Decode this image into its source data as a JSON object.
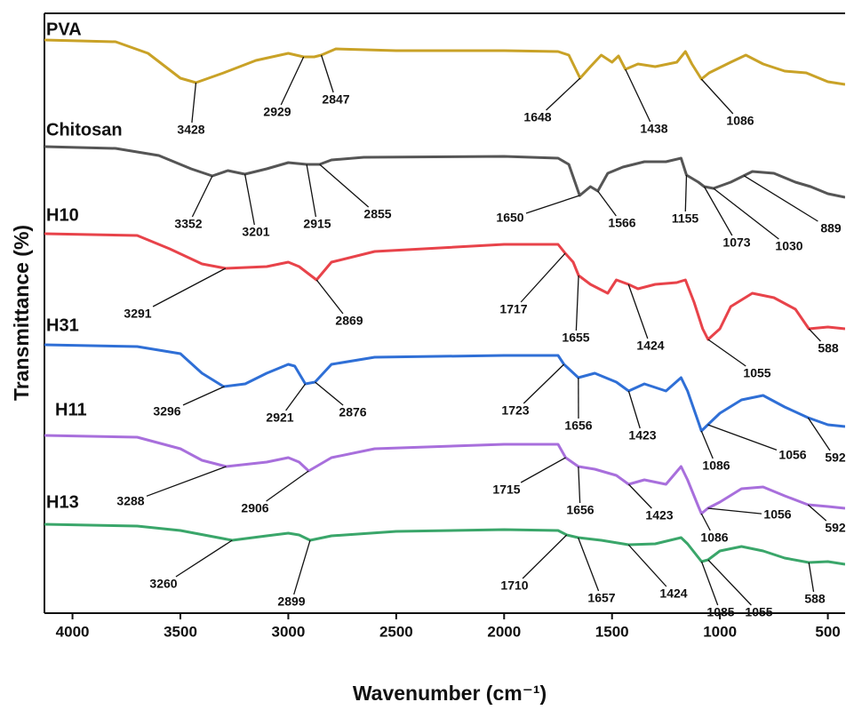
{
  "chart_data": {
    "type": "line",
    "xlabel": "Wavenumber (cm⁻¹)",
    "ylabel": "Transmittance (%)",
    "xlim": [
      4130,
      420
    ],
    "xticks": [
      4000,
      3500,
      3000,
      2500,
      2000,
      1500,
      1000,
      500
    ],
    "ylim": [
      0,
      135
    ],
    "series": [
      {
        "name": "PVA",
        "color": "#c9a227",
        "x": [
          4130,
          3800,
          3650,
          3500,
          3428,
          3300,
          3150,
          3000,
          2929,
          2880,
          2847,
          2780,
          2500,
          2000,
          1750,
          1700,
          1648,
          1600,
          1550,
          1500,
          1470,
          1438,
          1380,
          1300,
          1200,
          1160,
          1130,
          1086,
          1050,
          950,
          880,
          800,
          700,
          600,
          500,
          420
        ],
        "values": [
          129,
          128.6,
          126,
          120.4,
          119.4,
          121.6,
          124.4,
          126,
          125.2,
          125.2,
          125.6,
          127,
          126.6,
          126.6,
          126.4,
          125.6,
          120.4,
          123,
          125.6,
          124,
          125.4,
          122.4,
          123.6,
          123,
          124,
          126.4,
          123.6,
          120.2,
          121.6,
          124,
          125.6,
          123.6,
          122,
          121.6,
          119.6,
          119
        ],
        "peaks": [
          3428,
          2929,
          2847,
          1648,
          1438,
          1086
        ]
      },
      {
        "name": "Chitosan",
        "color": "#555555",
        "x": [
          4130,
          3800,
          3600,
          3450,
          3352,
          3280,
          3201,
          3100,
          3000,
          2915,
          2855,
          2800,
          2650,
          2000,
          1750,
          1700,
          1650,
          1600,
          1566,
          1520,
          1450,
          1350,
          1250,
          1180,
          1155,
          1100,
          1073,
          1030,
          950,
          850,
          750,
          650,
          580,
          500,
          420
        ],
        "values": [
          105,
          104.6,
          103,
          100,
          98.4,
          99.6,
          98.8,
          100,
          101.4,
          101,
          101,
          102,
          102.6,
          102.8,
          102.4,
          101,
          94,
          96,
          95,
          99,
          100.4,
          101.6,
          101.6,
          102.4,
          98.6,
          97,
          96,
          95.6,
          97,
          99.4,
          99,
          97,
          96,
          94.4,
          93.6
        ],
        "peaks": [
          3352,
          3201,
          2915,
          2855,
          1650,
          1566,
          1155,
          1073,
          1030,
          889
        ]
      },
      {
        "name": "H10",
        "color": "#e8434a",
        "x": [
          4130,
          3700,
          3550,
          3400,
          3291,
          3100,
          3000,
          2950,
          2869,
          2800,
          2600,
          2000,
          1750,
          1717,
          1680,
          1655,
          1600,
          1520,
          1480,
          1424,
          1380,
          1300,
          1200,
          1160,
          1120,
          1080,
          1055,
          1000,
          950,
          850,
          750,
          650,
          588,
          500,
          420
        ],
        "values": [
          85.4,
          85,
          82,
          78.6,
          77.6,
          78,
          79,
          78,
          75,
          79,
          81.4,
          83,
          83,
          81,
          79,
          76,
          74,
          72,
          75,
          74,
          73,
          74,
          74.4,
          75,
          70,
          64,
          61.6,
          64,
          69,
          72,
          71,
          68.4,
          64,
          64.4,
          64
        ],
        "peaks": [
          3291,
          2869,
          1717,
          1655,
          1424,
          1055,
          588
        ]
      },
      {
        "name": "H31",
        "color": "#2f6fd6",
        "x": [
          4130,
          3700,
          3500,
          3400,
          3300,
          3200,
          3100,
          3000,
          2970,
          2921,
          2876,
          2800,
          2600,
          2000,
          1750,
          1723,
          1656,
          1580,
          1480,
          1423,
          1350,
          1250,
          1180,
          1150,
          1100,
          1086,
          1056,
          1000,
          900,
          800,
          700,
          592,
          500,
          420
        ],
        "values": [
          60.4,
          60,
          58.4,
          54,
          51,
          51.6,
          54,
          56,
          55.6,
          51.6,
          52,
          56,
          57.6,
          58,
          58,
          56,
          53,
          54,
          52,
          50,
          51.6,
          50,
          53,
          50,
          43,
          41,
          42.4,
          45,
          48,
          49,
          46.4,
          44,
          42.4,
          42
        ],
        "peaks": [
          3296,
          2921,
          2876,
          1723,
          1656,
          1423,
          1086,
          1056,
          592
        ]
      },
      {
        "name": "H11",
        "color": "#a86fdc",
        "x": [
          4130,
          3700,
          3500,
          3400,
          3288,
          3100,
          3000,
          2950,
          2906,
          2800,
          2600,
          2000,
          1750,
          1715,
          1656,
          1580,
          1480,
          1423,
          1350,
          1250,
          1180,
          1150,
          1100,
          1086,
          1056,
          1000,
          900,
          800,
          700,
          592,
          500,
          420
        ],
        "values": [
          40,
          39.6,
          37,
          34.4,
          33,
          34,
          35,
          34,
          32,
          35,
          37,
          38,
          38,
          35,
          33,
          32.4,
          31,
          29,
          30,
          29,
          33,
          30,
          24,
          22.4,
          23.6,
          25,
          28,
          28.4,
          26.4,
          24.4,
          24,
          23.6
        ],
        "peaks": [
          3288,
          2906,
          1715,
          1656,
          1423,
          1086,
          1056,
          592
        ]
      },
      {
        "name": "H13",
        "color": "#3aa66a",
        "x": [
          4130,
          3700,
          3500,
          3260,
          3100,
          3000,
          2950,
          2899,
          2800,
          2500,
          2000,
          1750,
          1710,
          1657,
          1550,
          1424,
          1300,
          1180,
          1150,
          1085,
          1055,
          1000,
          900,
          800,
          700,
          588,
          500,
          420
        ],
        "values": [
          20,
          19.6,
          18.6,
          16.4,
          17.4,
          18,
          17.6,
          16.4,
          17.4,
          18.4,
          18.8,
          18.6,
          17.6,
          17,
          16.4,
          15.4,
          15.6,
          17,
          15.6,
          11.6,
          12,
          14,
          15,
          14,
          12.4,
          11.4,
          11.6,
          11
        ],
        "peaks": [
          3260,
          2899,
          1710,
          1657,
          1424,
          1085,
          1055,
          588
        ]
      }
    ]
  }
}
